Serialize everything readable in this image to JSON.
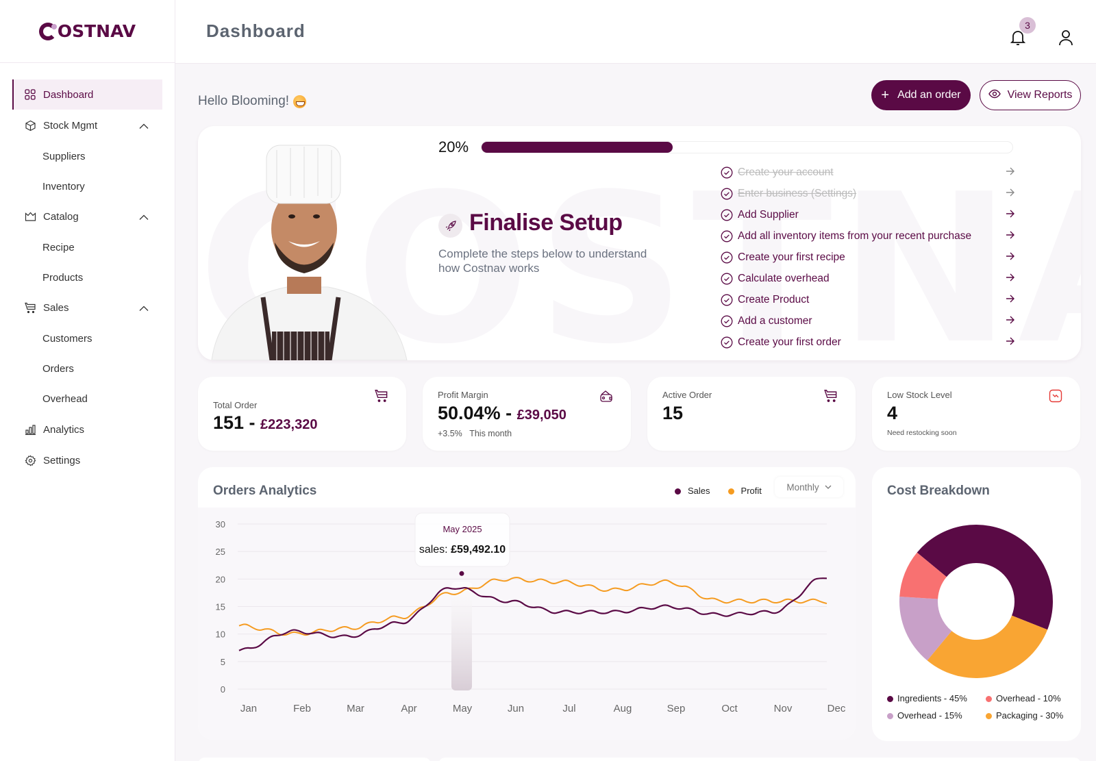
{
  "brand": {
    "name": "COSTNAV",
    "primary_color": "#5a0a45",
    "accent_color": "#f59b20"
  },
  "header": {
    "title": "Dashboard",
    "notification_count": "3"
  },
  "sidebar": {
    "items": [
      {
        "label": "Dashboard",
        "icon": "grid-icon",
        "active": true
      },
      {
        "label": "Stock Mgmt",
        "icon": "cube-icon",
        "expanded": true,
        "children": [
          "Suppliers",
          "Inventory"
        ]
      },
      {
        "label": "Catalog",
        "icon": "crown-icon",
        "expanded": true,
        "children": [
          "Recipe",
          "Products"
        ]
      },
      {
        "label": "Sales",
        "icon": "cart-icon",
        "expanded": true,
        "children": [
          "Customers",
          "Orders",
          "Overhead"
        ]
      },
      {
        "label": "Analytics",
        "icon": "bar-chart-icon"
      },
      {
        "label": "Settings",
        "icon": "gear-icon"
      }
    ]
  },
  "greeting": "Hello Blooming!",
  "actions": {
    "add_order": "Add an order",
    "view_reports": "View Reports"
  },
  "setup": {
    "progress_label": "20%",
    "progress_value": 36,
    "title": "Finalise Setup",
    "subtitle": "Complete the steps below to understand how Costnav works",
    "watermark": "COSTNAV",
    "steps": [
      {
        "label": "Create your account",
        "done": true
      },
      {
        "label": "Enter business (Settings)",
        "done": true
      },
      {
        "label": "Add Supplier",
        "done": false
      },
      {
        "label": "Add all inventory items from your recent purchase",
        "done": false
      },
      {
        "label": "Create your first recipe",
        "done": false
      },
      {
        "label": "Calculate overhead",
        "done": false
      },
      {
        "label": "Create Product",
        "done": false
      },
      {
        "label": "Add a customer",
        "done": false
      },
      {
        "label": "Create your first order",
        "done": false
      }
    ]
  },
  "stats": [
    {
      "label": "Total Order",
      "value": "151 - ",
      "accent": "£223,320",
      "sub": "",
      "icon": "cart-icon"
    },
    {
      "label": "Profit Margin",
      "value": "50.04% - ",
      "accent": "£39,050",
      "sub_change": "+3.5%",
      "sub": "This month",
      "icon": "wallet-icon"
    },
    {
      "label": "Active Order",
      "value": "15",
      "accent": "",
      "sub": "",
      "icon": "cart-icon"
    },
    {
      "label": "Low Stock Level",
      "value": "4",
      "accent": "",
      "sub": "Need restocking soon",
      "icon": "trend-down-icon"
    }
  ],
  "analytics": {
    "title": "Orders Analytics",
    "legend": [
      {
        "label": "Sales",
        "color": "#5a0a45"
      },
      {
        "label": "Profit",
        "color": "#f59b20"
      }
    ],
    "period": "Monthly",
    "tooltip": {
      "title": "May 2025",
      "label": "sales:",
      "value": "£59,492.10"
    }
  },
  "cost_breakdown": {
    "title": "Cost Breakdown",
    "legend": [
      {
        "label": "Ingredients - 45%",
        "color": "#5a0a45"
      },
      {
        "label": "Overhead - 10%",
        "color": "#f87171"
      },
      {
        "label": "Overhead - 15%",
        "color": "#c8a0c8"
      },
      {
        "label": "Packaging - 30%",
        "color": "#f9a533"
      }
    ]
  },
  "chart_data": [
    {
      "type": "line",
      "title": "Orders Analytics",
      "xlabel": "",
      "ylabel": "",
      "categories": [
        "Jan",
        "Feb",
        "Mar",
        "Apr",
        "May",
        "Jun",
        "Jul",
        "Aug",
        "Sep",
        "Oct",
        "Nov",
        "Dec"
      ],
      "yticks": [
        0,
        5,
        10,
        15,
        20,
        25,
        30
      ],
      "ylim": [
        0,
        30
      ],
      "grid": true,
      "legend_position": "top-right",
      "series": [
        {
          "name": "Sales",
          "color": "#5a0a45",
          "values": [
            7,
            10.5,
            9.5,
            12,
            18.5,
            16,
            14,
            14,
            15,
            13.5,
            14,
            20.5
          ]
        },
        {
          "name": "Profit",
          "color": "#f59b20",
          "values": [
            11.5,
            10,
            11,
            13,
            17.5,
            20,
            19.5,
            18,
            19.5,
            16,
            16,
            16
          ]
        }
      ],
      "annotations": [
        {
          "x": "May",
          "text": "May 2025 sales: £59,492.10"
        }
      ]
    },
    {
      "type": "pie",
      "title": "Cost Breakdown",
      "categories": [
        "Ingredients",
        "Overhead",
        "Overhead",
        "Packaging"
      ],
      "values": [
        45,
        10,
        15,
        30
      ],
      "colors": [
        "#5a0a45",
        "#f87171",
        "#c8a0c8",
        "#f9a533"
      ],
      "legend_position": "bottom"
    }
  ]
}
